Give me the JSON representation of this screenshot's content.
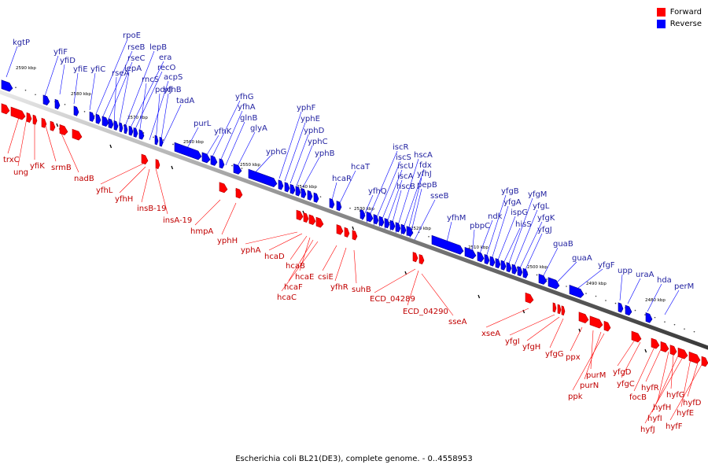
{
  "legend": {
    "items": [
      {
        "label": "Forward",
        "color": "#ff0000"
      },
      {
        "label": "Reverse",
        "color": "#0000ff"
      }
    ]
  },
  "caption": "Escherichia coli BL21(DE3), complete genome. - 0..4558953",
  "colors": {
    "forward": "#ff0000",
    "forward_dark": "#b40000",
    "reverse": "#0000ff",
    "reverse_dark": "#00008c",
    "axis": "#707070",
    "forward_label": "#c00000",
    "reverse_label": "#1f1f9f"
  },
  "ruler": {
    "ticks": [
      "2590 kbp",
      "2580 kbp",
      "2570 kbp",
      "2560 kbp",
      "2550 kbp",
      "2540 kbp",
      "2530 kbp",
      "2520 kbp",
      "2510 kbp",
      "2500 kbp",
      "2490 kbp",
      "2480 kbp"
    ]
  },
  "genes": {
    "reverse": [
      "kgtP",
      "yfiF",
      "yfiD",
      "yfiE",
      "yfiC",
      "rpoE",
      "rseB",
      "rseC",
      "rseA",
      "lepA",
      "lepB",
      "era",
      "recO",
      "rncS",
      "acpS",
      "pdxJ",
      "yfhB",
      "tadA",
      "purL",
      "yfhK",
      "yfhG",
      "yfhA",
      "glnB",
      "glyA",
      "yphG",
      "yphF",
      "yphE",
      "yphD",
      "yphC",
      "yphB",
      "hcaR",
      "hcaT",
      "yfhQ",
      "iscR",
      "iscS",
      "iscU",
      "iscA",
      "hscB",
      "hscA",
      "fdx",
      "yfhJ",
      "pepB",
      "sseB",
      "yfhM",
      "pbpC",
      "ndk",
      "yfgB",
      "yfgA",
      "ispG",
      "hisS",
      "yfgM",
      "yfgL",
      "yfgK",
      "yfgJ",
      "guaB",
      "guaA",
      "yfgF",
      "upp",
      "uraA",
      "hda",
      "perM"
    ],
    "forward": [
      "trxC",
      "ung",
      "yfiK",
      "srmB",
      "nadB",
      "yfhL",
      "yfhH",
      "insB-19",
      "insA-19",
      "hmpA",
      "yphH",
      "yphA",
      "hcaD",
      "hcaB",
      "hcaE",
      "hcaF",
      "hcaC",
      "csiE",
      "yfhR",
      "suhB",
      "ECD_04289",
      "ECD_04290",
      "sseA",
      "xseA",
      "yfgI",
      "yfgH",
      "yfgG",
      "ppx",
      "purM",
      "purN",
      "ppk",
      "yfgD",
      "yfgC",
      "focB",
      "hyfR",
      "hyfH",
      "hyfG",
      "hyfI",
      "hyfJ",
      "hyfE",
      "hyfD",
      "hyfF"
    ]
  }
}
